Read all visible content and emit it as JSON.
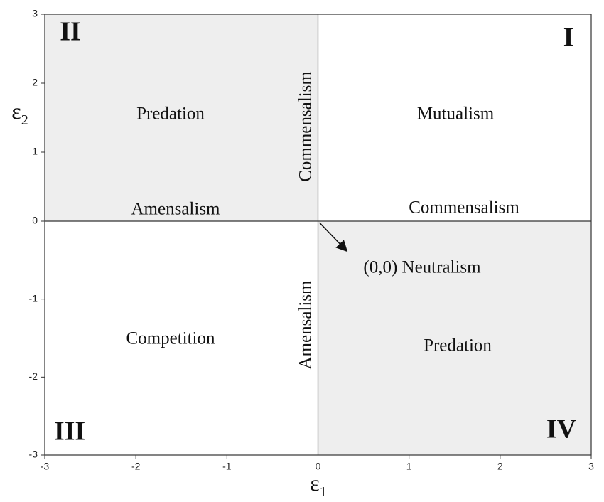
{
  "chart_data": {
    "type": "quadrant",
    "x_label": {
      "symbol": "ε",
      "subscript": "1"
    },
    "y_label": {
      "symbol": "ε",
      "subscript": "2"
    },
    "xlim": [
      -3,
      3
    ],
    "ylim": [
      -3,
      3
    ],
    "xticks": [
      -3,
      -2,
      -1,
      0,
      1,
      2,
      3
    ],
    "yticks": [
      -3,
      -2,
      -1,
      0,
      1,
      2,
      3
    ],
    "quadrants": [
      {
        "label": "I",
        "color": "#ffffff"
      },
      {
        "label": "II",
        "color": "#eeeeee"
      },
      {
        "label": "III",
        "color": "#ffffff"
      },
      {
        "label": "IV",
        "color": "#eeeeee"
      }
    ],
    "annotations": [
      "Predation",
      "Commensalism",
      "Mutualism",
      "Amensalism",
      "Commensalism",
      "(0,0) Neutralism",
      "Competition",
      "Amensalism",
      "Predation"
    ]
  }
}
